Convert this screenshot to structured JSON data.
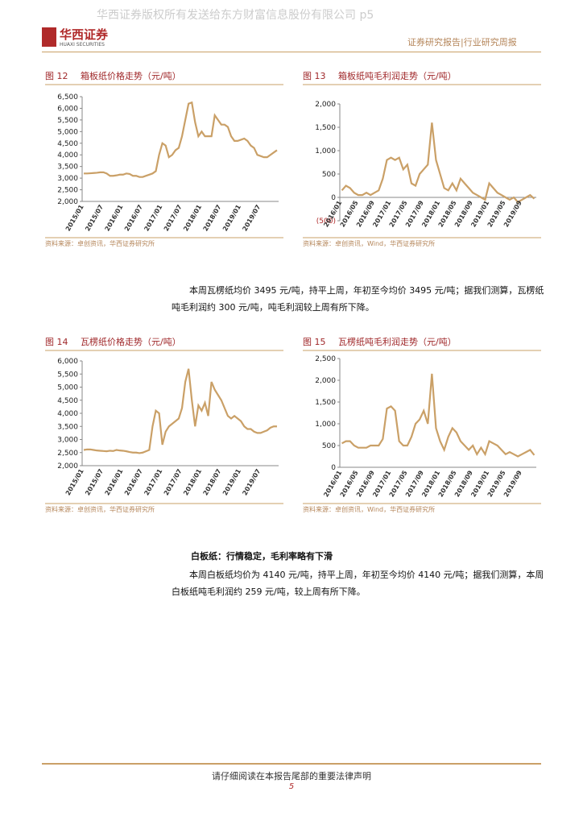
{
  "header": {
    "watermark": "华西证券版权所有发送给东方财富信息股份有限公司 p5",
    "logo_cn": "华西证券",
    "logo_en": "HUAXI SECURITIES",
    "report_type": "证券研究报告|行业研究周报"
  },
  "chart_data": [
    {
      "type": "line",
      "label": "图 12",
      "title": "箱板纸价格走势（元/吨）",
      "source": "资料来源：卓创资讯，华西证券研究所",
      "color": "#caa067",
      "categories": [
        "2015/01",
        null,
        null,
        null,
        null,
        null,
        "2015/07",
        null,
        null,
        null,
        null,
        null,
        "2016/01",
        null,
        null,
        null,
        null,
        null,
        "2016/07",
        null,
        null,
        null,
        null,
        null,
        "2017/01",
        null,
        null,
        null,
        null,
        null,
        "2017/07",
        null,
        null,
        null,
        null,
        null,
        "2018/01",
        null,
        null,
        null,
        null,
        null,
        "2018/07",
        null,
        null,
        null,
        null,
        null,
        "2019/01",
        null,
        null,
        null,
        null,
        null,
        "2019/07",
        null,
        null,
        null,
        null,
        null
      ],
      "values": [
        3200,
        3200,
        3210,
        3220,
        3230,
        3250,
        3250,
        3200,
        3100,
        3100,
        3120,
        3150,
        3150,
        3200,
        3180,
        3100,
        3100,
        3050,
        3050,
        3100,
        3150,
        3200,
        3300,
        4000,
        4500,
        4400,
        3900,
        4000,
        4200,
        4300,
        4800,
        5500,
        6200,
        6250,
        5400,
        4800,
        5000,
        4800,
        4800,
        4800,
        5700,
        5500,
        5300,
        5300,
        5200,
        4800,
        4600,
        4600,
        4650,
        4700,
        4600,
        4400,
        4300,
        4000,
        3950,
        3900,
        3900,
        4000,
        4100,
        4200
      ],
      "ylim": [
        2000,
        6500
      ],
      "yticks": [
        {
          "value": 2000,
          "label": "2,000"
        },
        {
          "value": 2500,
          "label": "2,500"
        },
        {
          "value": 3000,
          "label": "3,000"
        },
        {
          "value": 3500,
          "label": "3,500"
        },
        {
          "value": 4000,
          "label": "4,000"
        },
        {
          "value": 4500,
          "label": "4,500"
        },
        {
          "value": 5000,
          "label": "5,000"
        },
        {
          "value": 5500,
          "label": "5,500"
        },
        {
          "value": 6000,
          "label": "6,000"
        },
        {
          "value": 6500,
          "label": "6,500"
        }
      ]
    },
    {
      "type": "line",
      "label": "图 13",
      "title": "箱板纸吨毛利润走势（元/吨）",
      "source": "资料来源：卓创资讯，Wind，华西证券研究所",
      "color": "#caa067",
      "categories": [
        "2016/01",
        null,
        null,
        null,
        "2016/05",
        null,
        null,
        null,
        "2016/09",
        null,
        null,
        null,
        "2017/01",
        null,
        null,
        null,
        "2017/05",
        null,
        null,
        null,
        "2017/09",
        null,
        null,
        null,
        "2018/01",
        null,
        null,
        null,
        "2018/05",
        null,
        null,
        null,
        "2018/09",
        null,
        null,
        null,
        "2019/01",
        null,
        null,
        null,
        "2019/05",
        null,
        null,
        null,
        "2019/09",
        null,
        null,
        null
      ],
      "values": [
        150,
        250,
        200,
        100,
        50,
        50,
        100,
        50,
        100,
        150,
        400,
        800,
        850,
        800,
        850,
        600,
        700,
        300,
        250,
        500,
        600,
        700,
        1600,
        800,
        500,
        200,
        150,
        300,
        150,
        400,
        300,
        200,
        100,
        50,
        0,
        -50,
        300,
        200,
        100,
        50,
        0,
        -50,
        0,
        -100,
        -50,
        0,
        50,
        -30
      ],
      "ylim": [
        -500,
        2000
      ],
      "yticks": [
        {
          "value": -500,
          "label": "(500)"
        },
        0,
        500,
        {
          "value": 1000,
          "label": "1,000"
        },
        {
          "value": 1500,
          "label": "1,500"
        },
        {
          "value": 2000,
          "label": "2,000"
        }
      ]
    },
    {
      "type": "line",
      "label": "图 14",
      "title": "瓦楞纸价格走势（元/吨）",
      "source": "资料来源：卓创资讯，华西证券研究所",
      "color": "#caa067",
      "categories": [
        "2015/01",
        null,
        null,
        null,
        null,
        null,
        "2015/07",
        null,
        null,
        null,
        null,
        null,
        "2016/01",
        null,
        null,
        null,
        null,
        null,
        "2016/07",
        null,
        null,
        null,
        null,
        null,
        "2017/01",
        null,
        null,
        null,
        null,
        null,
        "2017/07",
        null,
        null,
        null,
        null,
        null,
        "2018/01",
        null,
        null,
        null,
        null,
        null,
        "2018/07",
        null,
        null,
        null,
        null,
        null,
        "2019/01",
        null,
        null,
        null,
        null,
        null,
        "2019/07",
        null,
        null,
        null,
        null,
        null
      ],
      "values": [
        2600,
        2620,
        2620,
        2600,
        2580,
        2570,
        2560,
        2550,
        2570,
        2560,
        2600,
        2580,
        2570,
        2550,
        2520,
        2500,
        2500,
        2480,
        2500,
        2550,
        2600,
        3500,
        4100,
        4000,
        2800,
        3300,
        3500,
        3600,
        3700,
        3800,
        4200,
        5200,
        5700,
        4500,
        3500,
        4300,
        4100,
        4400,
        3900,
        5200,
        4900,
        4700,
        4500,
        4200,
        3900,
        3800,
        3900,
        3800,
        3700,
        3500,
        3400,
        3400,
        3300,
        3250,
        3250,
        3300,
        3350,
        3450,
        3500,
        3500
      ],
      "ylim": [
        2000,
        6000
      ],
      "yticks": [
        {
          "value": 2000,
          "label": "2,000"
        },
        {
          "value": 2500,
          "label": "2,500"
        },
        {
          "value": 3000,
          "label": "3,000"
        },
        {
          "value": 3500,
          "label": "3,500"
        },
        {
          "value": 4000,
          "label": "4,000"
        },
        {
          "value": 4500,
          "label": "4,500"
        },
        {
          "value": 5000,
          "label": "5,000"
        },
        {
          "value": 5500,
          "label": "5,500"
        },
        {
          "value": 6000,
          "label": "6,000"
        }
      ]
    },
    {
      "type": "line",
      "label": "图 15",
      "title": "瓦楞纸吨毛利润走势（元/吨）",
      "source": "资料来源：卓创资讯，Wind，华西证券研究所",
      "color": "#caa067",
      "categories": [
        "2016/01",
        null,
        null,
        null,
        "2016/05",
        null,
        null,
        null,
        "2016/09",
        null,
        null,
        null,
        "2017/01",
        null,
        null,
        null,
        "2017/05",
        null,
        null,
        null,
        "2017/09",
        null,
        null,
        null,
        "2018/01",
        null,
        null,
        null,
        "2018/05",
        null,
        null,
        null,
        "2018/09",
        null,
        null,
        null,
        "2019/01",
        null,
        null,
        null,
        "2019/05",
        null,
        null,
        null,
        "2019/09",
        null,
        null,
        null
      ],
      "values": [
        550,
        600,
        600,
        500,
        450,
        450,
        450,
        500,
        500,
        500,
        650,
        1350,
        1400,
        1300,
        600,
        500,
        500,
        700,
        1000,
        1100,
        1300,
        1000,
        2150,
        900,
        600,
        400,
        700,
        900,
        800,
        600,
        500,
        400,
        500,
        300,
        450,
        300,
        600,
        550,
        500,
        400,
        300,
        350,
        300,
        250,
        300,
        350,
        400,
        280
      ],
      "ylim": [
        0,
        2500
      ],
      "yticks": [
        0,
        500,
        {
          "value": 1000,
          "label": "1,000"
        },
        {
          "value": 1500,
          "label": "1,500"
        },
        {
          "value": 2000,
          "label": "2,000"
        },
        {
          "value": 2500,
          "label": "2,500"
        }
      ]
    }
  ],
  "body": {
    "paragraph_1": "本周瓦楞纸均价 3495 元/吨，持平上周，年初至今均价 3495 元/吨；据我们测算，瓦楞纸吨毛利润约 300 元/吨，吨毛利润较上周有所下降。",
    "heading": "白板纸：行情稳定，毛利率略有下滑",
    "paragraph_2": "本周白板纸均价为 4140 元/吨，持平上周，年初至今均价 4140 元/吨；据我们测算，本周白板纸吨毛利润约 259 元/吨，较上周有所下降。"
  },
  "footer": {
    "notice": "请仔细阅读在本报告尾部的重要法律声明",
    "page": "5"
  }
}
